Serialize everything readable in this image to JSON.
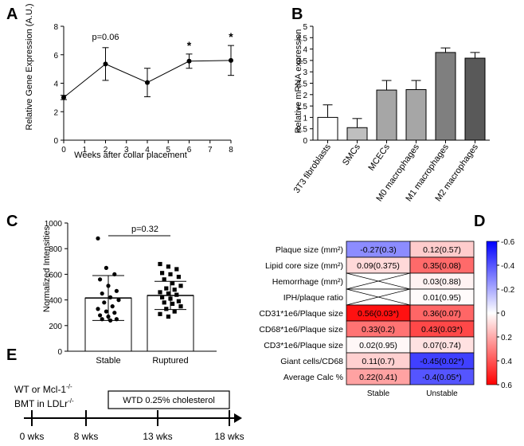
{
  "panel_labels": [
    "A",
    "B",
    "C",
    "D",
    "E"
  ],
  "chart_data": [
    {
      "panel": "A",
      "type": "line",
      "xlabel": "Weeks after collar placement",
      "ylabel": "Relative Gene Expression (A.U.)",
      "xlim": [
        0,
        8
      ],
      "ylim": [
        0,
        8
      ],
      "xticks": [
        "0",
        "1",
        "2",
        "3",
        "4",
        "5",
        "6",
        "7",
        "8"
      ],
      "yticks": [
        "0",
        "2",
        "4",
        "6",
        "8"
      ],
      "x": [
        0,
        2,
        4,
        6,
        8
      ],
      "y": [
        3.0,
        5.35,
        4.05,
        5.55,
        5.6
      ],
      "err": [
        0.15,
        1.15,
        1.0,
        0.5,
        1.05
      ],
      "annotations": [
        {
          "x": 2,
          "text": "p=0.06"
        },
        {
          "x": 6,
          "text": "*"
        },
        {
          "x": 8,
          "text": "*"
        }
      ]
    },
    {
      "panel": "B",
      "type": "bar",
      "ylabel": "Relative mRNA expression",
      "ylim": [
        0,
        5
      ],
      "yticks": [
        "0",
        "0.5",
        "1",
        "1.5",
        "2",
        "2.5",
        "3",
        "3.5",
        "4",
        "4.5",
        "5"
      ],
      "categories": [
        "3T3 fibroblasts",
        "SMCs",
        "MCECs",
        "M0 macrophages",
        "M1 macrophages",
        "M2 macrophages"
      ],
      "values": [
        1.0,
        0.55,
        2.2,
        2.22,
        3.85,
        3.6
      ],
      "err": [
        0.55,
        0.4,
        0.42,
        0.4,
        0.2,
        0.25
      ],
      "colors": [
        "#ffffff",
        "#bfbfbf",
        "#a6a6a6",
        "#a6a6a6",
        "#7f7f7f",
        "#595959"
      ]
    },
    {
      "panel": "C",
      "type": "scatter",
      "ylabel": "Normalized Intensities",
      "ylim": [
        0,
        1000
      ],
      "yticks": [
        "0",
        "200",
        "400",
        "600",
        "800",
        "1000"
      ],
      "categories": [
        "Stable",
        "Ruptured"
      ],
      "means": [
        415,
        435
      ],
      "sd": [
        175,
        110
      ],
      "annotation": "p=0.32",
      "series": [
        {
          "name": "Stable",
          "marker": "circle",
          "values": [
            880,
            650,
            600,
            560,
            510,
            470,
            450,
            420,
            400,
            380,
            350,
            330,
            310,
            300,
            280,
            270,
            250,
            250,
            240
          ]
        },
        {
          "name": "Ruptured",
          "marker": "square",
          "values": [
            680,
            660,
            640,
            610,
            600,
            580,
            560,
            530,
            510,
            490,
            480,
            460,
            450,
            440,
            420,
            410,
            390,
            380,
            370,
            350,
            330,
            310,
            290,
            270
          ]
        }
      ]
    },
    {
      "panel": "D",
      "type": "heatmap",
      "columns": [
        "Stable",
        "Unstable"
      ],
      "rows": [
        {
          "label": "Plaque size (mm²)",
          "cells": [
            {
              "text": "-0.27(0.3)",
              "value": -0.27
            },
            {
              "text": "0.12(0.57)",
              "value": 0.12
            }
          ]
        },
        {
          "label": "Lipid core size (mm²)",
          "cells": [
            {
              "text": "0.09(0.375)",
              "value": 0.09
            },
            {
              "text": "0.35(0.08)",
              "value": 0.35
            }
          ]
        },
        {
          "label": "Hemorrhage (mm²)",
          "cells": [
            {
              "text": "",
              "value": null
            },
            {
              "text": "0.03(0.88)",
              "value": 0.03
            }
          ]
        },
        {
          "label": "IPH/plaque ratio",
          "cells": [
            {
              "text": "",
              "value": null
            },
            {
              "text": "0.01(0.95)",
              "value": 0.01
            }
          ]
        },
        {
          "label": "CD31*1e6/Plaque size",
          "cells": [
            {
              "text": "0.56(0.03*)",
              "value": 0.56
            },
            {
              "text": "0.36(0.07)",
              "value": 0.36
            }
          ]
        },
        {
          "label": "CD68*1e6/Plaque size",
          "cells": [
            {
              "text": "0.33(0.2)",
              "value": 0.33
            },
            {
              "text": "0.43(0.03*)",
              "value": 0.43
            }
          ]
        },
        {
          "label": "CD3*1e6/Plaque size",
          "cells": [
            {
              "text": "0.02(0.95)",
              "value": 0.02
            },
            {
              "text": "0.07(0.74)",
              "value": 0.07
            }
          ]
        },
        {
          "label": "Giant cells/CD68",
          "cells": [
            {
              "text": "0.11(0.7)",
              "value": 0.11
            },
            {
              "text": "-0.45(0.02*)",
              "value": -0.45
            }
          ]
        },
        {
          "label": "Average Calc %",
          "cells": [
            {
              "text": "0.22(0.41)",
              "value": 0.22
            },
            {
              "text": "-0.4(0.05*)",
              "value": -0.4
            }
          ]
        }
      ],
      "colorbar_ticks": [
        "-0.6",
        "-0.4",
        "-0.2",
        "0",
        "0.2",
        "0.4",
        "0.6"
      ],
      "colorbar_range": [
        -0.6,
        0.6
      ]
    }
  ],
  "timeline": {
    "panel": "E",
    "left_label_line1": "WT or Mcl-1",
    "left_label_sup1": "-/-",
    "left_label_line2": "BMT in LDLr",
    "left_label_sup2": "-/-",
    "box_label": "WTD 0.25% cholesterol",
    "ticks": [
      "0 wks",
      "8 wks",
      "13 wks",
      "18 wks"
    ]
  }
}
